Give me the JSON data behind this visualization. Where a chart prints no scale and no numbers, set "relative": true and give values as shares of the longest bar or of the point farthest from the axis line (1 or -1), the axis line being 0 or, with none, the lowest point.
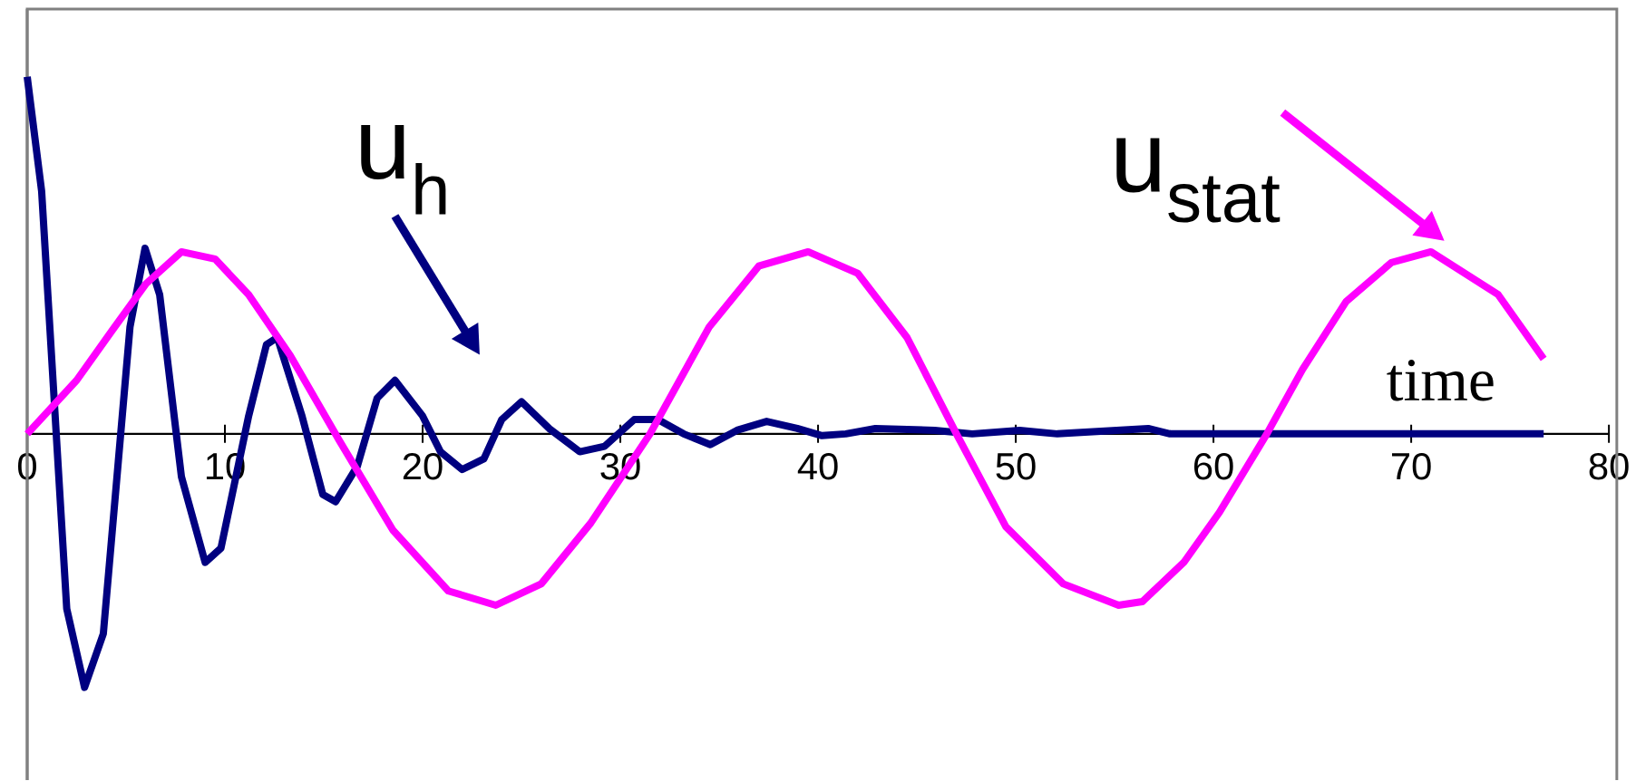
{
  "chart_data": {
    "type": "line",
    "xlabel": "time",
    "relative": true,
    "xlim": [
      0,
      80
    ],
    "xticks": [
      0,
      10,
      20,
      30,
      40,
      50,
      60,
      70,
      80
    ],
    "grid": false,
    "legend": "top right",
    "series": [
      {
        "name": "u$_{h}$",
        "color": "#000080",
        "x": [
          0,
          0.73,
          2.0,
          2.9,
          3.85,
          5.2,
          5.96,
          6.7,
          7.8,
          9.0,
          9.8,
          11.2,
          12.1,
          12.65,
          13.9,
          14.95,
          15.6,
          16.7,
          17.7,
          18.6,
          20.0,
          20.9,
          22.0,
          23.1,
          24.0,
          25.0,
          26.4,
          27.95,
          29.2,
          30.7,
          31.9,
          33.2,
          34.55,
          35.9,
          37.4,
          38.95,
          40.2,
          41.4,
          42.9,
          45.9,
          47.8,
          50.2,
          52.1,
          56.7,
          57.8,
          76.7
        ],
        "values": [
          1.0,
          0.68,
          -0.49,
          -0.71,
          -0.56,
          0.3,
          0.52,
          0.39,
          -0.12,
          -0.36,
          -0.32,
          0.05,
          0.25,
          0.27,
          0.05,
          -0.17,
          -0.19,
          -0.09,
          0.1,
          0.15,
          0.05,
          -0.05,
          -0.1,
          -0.07,
          0.04,
          0.09,
          0.015,
          -0.05,
          -0.035,
          0.04,
          0.04,
          0.0,
          -0.03,
          0.01,
          0.035,
          0.015,
          -0.005,
          0.0,
          0.015,
          0.01,
          0.0,
          0.01,
          0.0,
          0.015,
          0.0,
          0.0
        ]
      },
      {
        "name": "u$_{stat}$",
        "color": "#ff00ff",
        "x": [
          0,
          2.5,
          4.3,
          6.0,
          7.8,
          9.5,
          11.2,
          13.3,
          15.8,
          18.5,
          21.3,
          23.7,
          26.0,
          28.5,
          31.5,
          34.5,
          37.0,
          39.5,
          42.0,
          44.5,
          47.0,
          49.5,
          52.4,
          55.2,
          56.4,
          58.5,
          60.3,
          62.7,
          64.5,
          66.7,
          69.0,
          71.0,
          74.4,
          76.7
        ],
        "values": [
          0,
          0.15,
          0.29,
          0.42,
          0.51,
          0.49,
          0.39,
          0.22,
          -0.02,
          -0.27,
          -0.44,
          -0.48,
          -0.42,
          -0.25,
          0,
          0.3,
          0.47,
          0.51,
          0.45,
          0.27,
          0,
          -0.26,
          -0.42,
          -0.48,
          -0.47,
          -0.36,
          -0.22,
          0,
          0.18,
          0.37,
          0.48,
          0.51,
          0.39,
          0.21
        ]
      }
    ]
  }
}
